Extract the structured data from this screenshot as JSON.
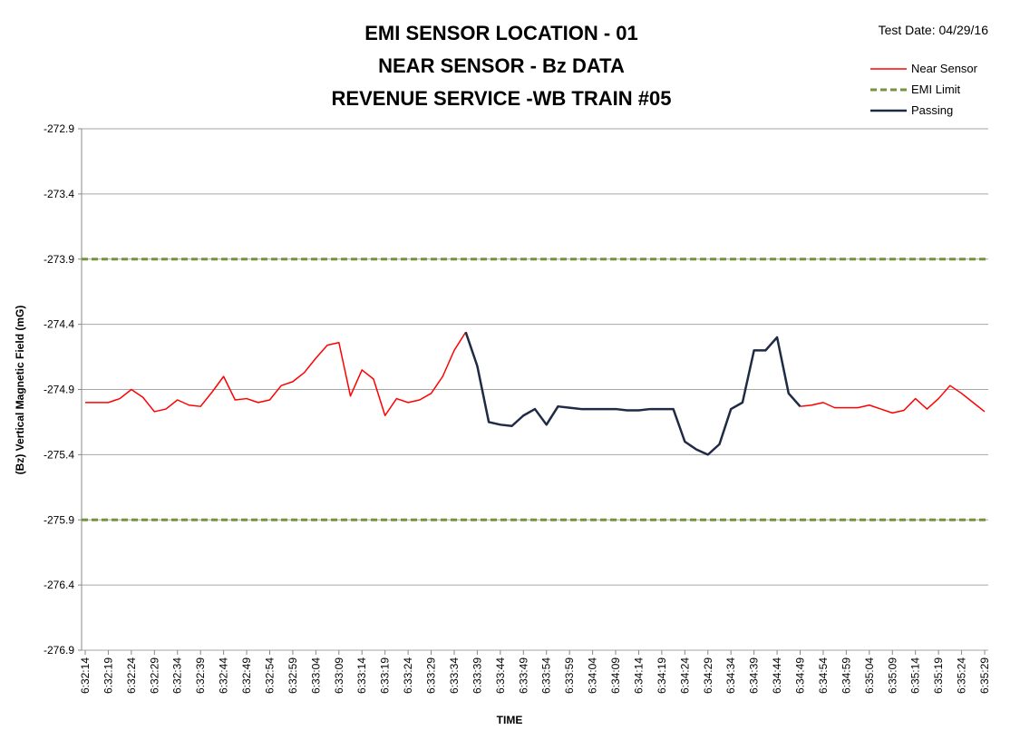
{
  "chart_data": {
    "type": "line",
    "title": [
      "EMI SENSOR LOCATION - 01",
      "NEAR SENSOR - Bz DATA",
      "REVENUE SERVICE -WB TRAIN #05"
    ],
    "test_date": "Test Date: 04/29/16",
    "xlabel": "TIME",
    "ylabel": "(Bz) Vertical Magnetic Field (mG)",
    "ylim": [
      -276.9,
      -272.9
    ],
    "yticks": [
      -272.9,
      -273.4,
      -273.9,
      -274.4,
      -274.9,
      -275.4,
      -275.9,
      -276.4,
      -276.9
    ],
    "grid": true,
    "legend": "top-right",
    "categories": [
      "6:32:14",
      null,
      "6:32:19",
      null,
      "6:32:24",
      null,
      "6:32:29",
      null,
      "6:32:34",
      null,
      "6:32:39",
      null,
      "6:32:44",
      null,
      "6:32:49",
      null,
      "6:32:54",
      null,
      "6:32:59",
      null,
      "6:33:04",
      null,
      "6:33:09",
      null,
      "6:33:14",
      null,
      "6:33:19",
      null,
      "6:33:24",
      null,
      "6:33:29",
      null,
      "6:33:34",
      null,
      "6:33:39",
      null,
      "6:33:44",
      null,
      "6:33:49",
      null,
      "6:33:54",
      null,
      "6:33:59",
      null,
      "6:34:04",
      null,
      "6:34:09",
      null,
      "6:34:14",
      null,
      "6:34:19",
      null,
      "6:34:24",
      null,
      "6:34:29",
      null,
      "6:34:34",
      null,
      "6:34:39",
      null,
      "6:34:44",
      null,
      "6:34:49",
      null,
      "6:34:54",
      null,
      "6:34:59",
      null,
      "6:35:04",
      null,
      "6:35:09",
      null,
      "6:35:14",
      null,
      "6:35:19",
      null,
      "6:35:24",
      null,
      "6:35:29"
    ],
    "series": [
      {
        "name": "Near Sensor",
        "color": "#ff0000",
        "values": [
          -275.0,
          -275.0,
          -275.0,
          -274.97,
          -274.9,
          -274.96,
          -275.07,
          -275.05,
          -274.98,
          -275.02,
          -275.03,
          -274.92,
          -274.8,
          -274.98,
          -274.97,
          -275.0,
          -274.98,
          -274.87,
          -274.84,
          -274.77,
          -274.66,
          -274.56,
          -274.54,
          -274.95,
          -274.75,
          -274.82,
          -275.1,
          -274.97,
          -275.0,
          -274.98,
          -274.93,
          -274.8,
          -274.6,
          -274.46,
          null,
          null,
          null,
          null,
          null,
          null,
          null,
          null,
          null,
          null,
          null,
          null,
          null,
          null,
          null,
          null,
          null,
          null,
          null,
          null,
          null,
          null,
          null,
          null,
          null,
          null,
          null,
          null,
          -275.03,
          -275.02,
          -275.0,
          -275.04,
          -275.04,
          -275.04,
          -275.02,
          -275.05,
          -275.08,
          -275.06,
          -274.97,
          -275.05,
          -274.97,
          -274.87,
          -274.93,
          -275.0,
          -275.07
        ]
      },
      {
        "name": "Passing",
        "color": "#1f2a44",
        "values": [
          null,
          null,
          null,
          null,
          null,
          null,
          null,
          null,
          null,
          null,
          null,
          null,
          null,
          null,
          null,
          null,
          null,
          null,
          null,
          null,
          null,
          null,
          null,
          null,
          null,
          null,
          null,
          null,
          null,
          null,
          null,
          null,
          null,
          -274.46,
          -274.72,
          -275.15,
          -275.17,
          -275.18,
          -275.1,
          -275.05,
          -275.17,
          -275.03,
          -275.04,
          -275.05,
          -275.05,
          -275.05,
          -275.05,
          -275.06,
          -275.06,
          -275.05,
          -275.05,
          -275.05,
          -275.3,
          -275.36,
          -275.4,
          -275.32,
          -275.05,
          -275.0,
          -274.6,
          -274.6,
          -274.5,
          -274.93,
          -275.03,
          null,
          null,
          null,
          null,
          null,
          null,
          null,
          null,
          null,
          null,
          null,
          null,
          null,
          null,
          null,
          null
        ]
      }
    ],
    "limit_lines": {
      "name": "EMI Limit",
      "color": "#77933c",
      "values": [
        -273.9,
        -275.9
      ]
    }
  }
}
